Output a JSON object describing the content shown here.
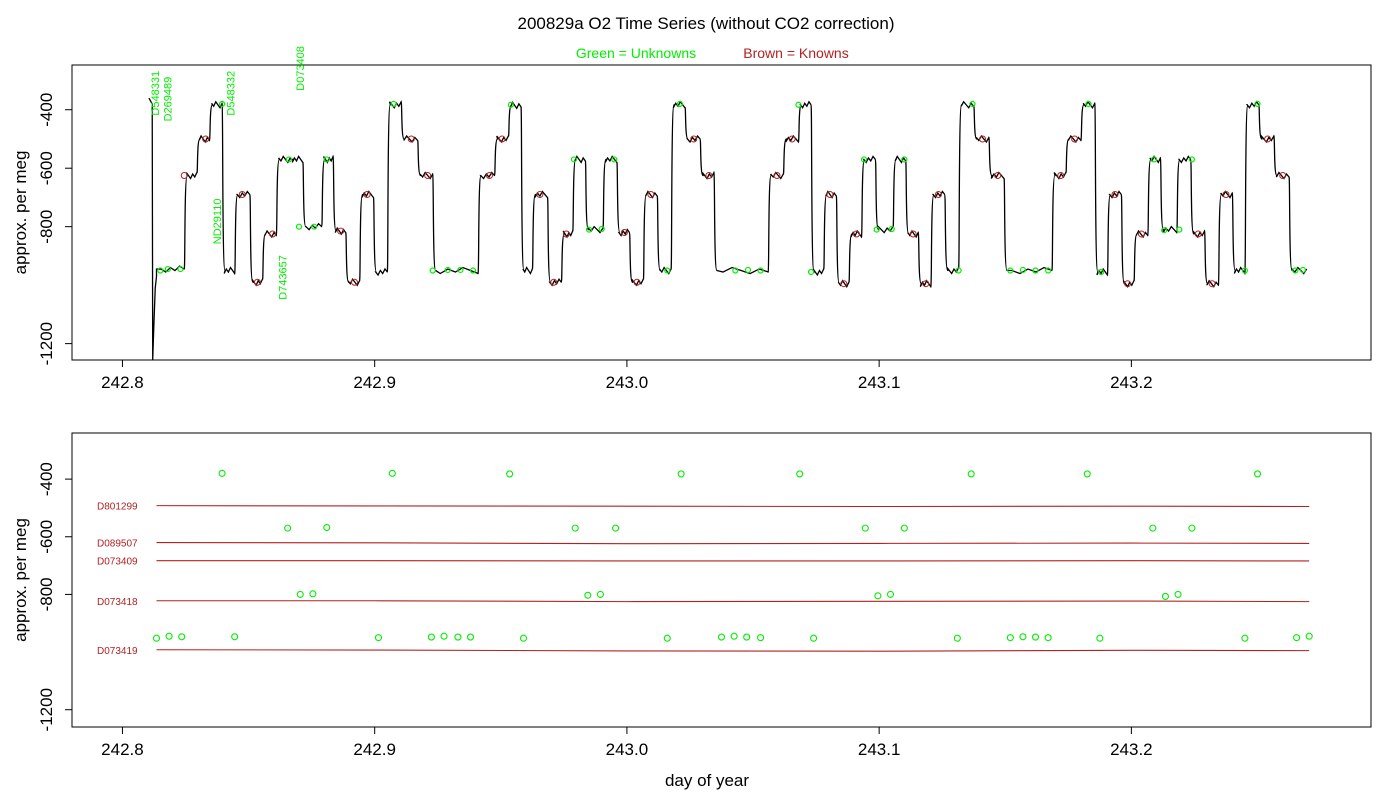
{
  "title": "200829a   O2 Time Series (without CO2 correction)",
  "legend": {
    "unknowns_label": "Green = Unknowns",
    "knowns_label": "Brown = Knowns",
    "unknowns_color": "#00ee00",
    "knowns_color": "#b22222",
    "placement": "top-center"
  },
  "xlabel": "day of year",
  "chart_data": [
    {
      "type": "line",
      "panel": "top",
      "ylabel": "approx. per meg",
      "xlim": [
        242.78,
        243.295
      ],
      "ylim": [
        -1256,
        -247
      ],
      "y_reversed": true,
      "x_ticks": [
        "242.8",
        "242.9",
        "243.0",
        "243.1",
        "243.2"
      ],
      "y_ticks": [
        "-400",
        "-600",
        "-800",
        "-1200"
      ],
      "step_series": {
        "name": "O2",
        "color": "#000000",
        "steps": [
          [
            242.8135,
            242.8245,
            -945
          ],
          [
            242.8245,
            242.8295,
            -625
          ],
          [
            242.8295,
            242.8345,
            -500
          ],
          [
            242.8345,
            242.8395,
            -383
          ],
          [
            242.8395,
            242.8445,
            -950
          ],
          [
            242.8445,
            242.8505,
            -690
          ],
          [
            242.8505,
            242.8555,
            -990
          ],
          [
            242.8555,
            242.861,
            -825
          ],
          [
            242.861,
            242.8665,
            -570
          ],
          [
            242.8665,
            242.8715,
            -570
          ],
          [
            242.8715,
            242.879,
            -800
          ],
          [
            242.879,
            242.8835,
            -570
          ],
          [
            242.8835,
            242.8885,
            -815
          ],
          [
            242.8885,
            242.894,
            -990
          ],
          [
            242.894,
            242.8995,
            -690
          ],
          [
            242.8995,
            242.905,
            -955
          ],
          [
            242.905,
            242.9105,
            -383
          ],
          [
            242.9105,
            242.917,
            -500
          ],
          [
            242.917,
            242.923,
            -625
          ],
          [
            242.923,
            242.941,
            -950
          ],
          [
            242.941,
            242.9475,
            -625
          ],
          [
            242.9475,
            242.953,
            -500
          ],
          [
            242.953,
            242.958,
            -385
          ],
          [
            242.958,
            242.9625,
            -950
          ],
          [
            242.9625,
            242.9685,
            -690
          ],
          [
            242.9685,
            242.974,
            -990
          ],
          [
            242.974,
            242.9785,
            -825
          ],
          [
            242.9785,
            242.9835,
            -570
          ],
          [
            242.9835,
            242.9905,
            -810
          ],
          [
            242.9905,
            242.996,
            -570
          ],
          [
            242.996,
            243.001,
            -820
          ],
          [
            243.001,
            243.0065,
            -990
          ],
          [
            243.0065,
            243.012,
            -690
          ],
          [
            243.012,
            243.0175,
            -950
          ],
          [
            243.0175,
            243.023,
            -383
          ],
          [
            243.023,
            243.029,
            -500
          ],
          [
            243.029,
            243.0345,
            -625
          ],
          [
            243.0345,
            243.056,
            -950
          ],
          [
            243.056,
            243.062,
            -625
          ],
          [
            243.062,
            243.068,
            -500
          ],
          [
            243.068,
            243.073,
            -383
          ],
          [
            243.073,
            243.078,
            -955
          ],
          [
            243.078,
            243.083,
            -690
          ],
          [
            243.083,
            243.088,
            -995
          ],
          [
            243.088,
            243.093,
            -825
          ],
          [
            243.093,
            243.0985,
            -570
          ],
          [
            243.0985,
            243.1055,
            -810
          ],
          [
            243.1055,
            243.1105,
            -570
          ],
          [
            243.1105,
            243.1155,
            -825
          ],
          [
            243.1155,
            243.1205,
            -995
          ],
          [
            243.1205,
            243.126,
            -690
          ],
          [
            243.126,
            243.1315,
            -950
          ],
          [
            243.1315,
            243.1375,
            -383
          ],
          [
            243.1375,
            243.1435,
            -500
          ],
          [
            243.1435,
            243.1495,
            -625
          ],
          [
            243.1495,
            243.1685,
            -950
          ],
          [
            243.1685,
            243.174,
            -625
          ],
          [
            243.174,
            243.18,
            -500
          ],
          [
            243.18,
            243.1855,
            -383
          ],
          [
            243.1855,
            243.1905,
            -955
          ],
          [
            243.1905,
            243.196,
            -690
          ],
          [
            243.196,
            243.201,
            -995
          ],
          [
            243.201,
            243.2065,
            -825
          ],
          [
            243.2065,
            243.2115,
            -570
          ],
          [
            243.2115,
            243.218,
            -810
          ],
          [
            243.218,
            243.2235,
            -570
          ],
          [
            243.2235,
            243.229,
            -825
          ],
          [
            243.229,
            243.2345,
            -995
          ],
          [
            243.2345,
            243.24,
            -690
          ],
          [
            243.24,
            243.245,
            -950
          ],
          [
            243.245,
            243.2505,
            -383
          ],
          [
            243.2505,
            243.2565,
            -500
          ],
          [
            243.2565,
            243.2625,
            -625
          ],
          [
            243.2625,
            243.2695,
            -950
          ]
        ]
      },
      "unknowns": [
        [
          242.815,
          -950
        ],
        [
          242.818,
          -945
        ],
        [
          242.823,
          -945
        ],
        [
          242.8395,
          -380
        ],
        [
          242.866,
          -570
        ],
        [
          242.87,
          -800
        ],
        [
          242.876,
          -800
        ],
        [
          242.881,
          -570
        ],
        [
          242.9075,
          -380
        ],
        [
          242.923,
          -950
        ],
        [
          242.929,
          -948
        ],
        [
          242.934,
          -948
        ],
        [
          242.939,
          -950
        ],
        [
          242.954,
          -383
        ],
        [
          242.979,
          -570
        ],
        [
          242.985,
          -810
        ],
        [
          242.99,
          -808
        ],
        [
          242.995,
          -570
        ],
        [
          243.016,
          -950
        ],
        [
          243.021,
          -380
        ],
        [
          243.043,
          -950
        ],
        [
          243.048,
          -948
        ],
        [
          243.053,
          -950
        ],
        [
          243.068,
          -383
        ],
        [
          243.073,
          -955
        ],
        [
          243.094,
          -570
        ],
        [
          243.099,
          -810
        ],
        [
          243.105,
          -808
        ],
        [
          243.11,
          -570
        ],
        [
          243.1315,
          -950
        ],
        [
          243.137,
          -380
        ],
        [
          243.152,
          -950
        ],
        [
          243.157,
          -948
        ],
        [
          243.162,
          -950
        ],
        [
          243.167,
          -950
        ],
        [
          243.183,
          -380
        ],
        [
          243.188,
          -955
        ],
        [
          243.209,
          -570
        ],
        [
          243.213,
          -812
        ],
        [
          243.219,
          -810
        ],
        [
          243.224,
          -570
        ],
        [
          243.245,
          -950
        ],
        [
          243.25,
          -380
        ],
        [
          243.265,
          -950
        ],
        [
          243.268,
          -948
        ]
      ],
      "knowns": [
        [
          242.8245,
          -625
        ],
        [
          242.833,
          -500
        ],
        [
          242.8475,
          -690
        ],
        [
          242.8595,
          -825
        ],
        [
          242.8535,
          -990
        ],
        [
          242.8865,
          -815
        ],
        [
          242.892,
          -990
        ],
        [
          242.897,
          -690
        ],
        [
          242.9145,
          -500
        ],
        [
          242.921,
          -625
        ],
        [
          242.9455,
          -625
        ],
        [
          242.9505,
          -500
        ],
        [
          242.9655,
          -690
        ],
        [
          242.971,
          -990
        ],
        [
          242.976,
          -825
        ],
        [
          242.999,
          -820
        ],
        [
          243.004,
          -990
        ],
        [
          243.0095,
          -690
        ],
        [
          243.0265,
          -500
        ],
        [
          243.0325,
          -625
        ],
        [
          243.0595,
          -625
        ],
        [
          243.0655,
          -500
        ],
        [
          243.0805,
          -690
        ],
        [
          243.086,
          -995
        ],
        [
          243.091,
          -825
        ],
        [
          243.1135,
          -825
        ],
        [
          243.1185,
          -995
        ],
        [
          243.1235,
          -690
        ],
        [
          243.141,
          -500
        ],
        [
          243.147,
          -625
        ],
        [
          243.172,
          -625
        ],
        [
          243.1775,
          -500
        ],
        [
          243.1935,
          -690
        ],
        [
          243.1985,
          -995
        ],
        [
          243.204,
          -825
        ],
        [
          243.2265,
          -825
        ],
        [
          243.232,
          -995
        ],
        [
          243.2375,
          -690
        ],
        [
          243.254,
          -500
        ],
        [
          243.26,
          -625
        ]
      ],
      "annotations": [
        {
          "text": "D548331",
          "x": 242.8145,
          "y": -420
        },
        {
          "text": "D269489",
          "x": 242.8195,
          "y": -440
        },
        {
          "text": "D548332",
          "x": 242.8445,
          "y": -420
        },
        {
          "text": "D073408",
          "x": 242.872,
          "y": -335
        },
        {
          "text": "ND29110",
          "x": 242.839,
          "y": -860
        },
        {
          "text": "D743657",
          "x": 242.865,
          "y": -1050
        }
      ]
    },
    {
      "type": "scatter",
      "panel": "bottom",
      "ylabel": "approx. per meg",
      "xlim": [
        242.78,
        243.295
      ],
      "ylim": [
        -1260,
        -240
      ],
      "y_reversed": true,
      "x_ticks": [
        "242.8",
        "242.9",
        "243.0",
        "243.1",
        "243.2"
      ],
      "y_ticks": [
        "-400",
        "-600",
        "-800",
        "-1200"
      ],
      "unknowns": [
        [
          242.8135,
          -952
        ],
        [
          242.8185,
          -945
        ],
        [
          242.8235,
          -947
        ],
        [
          242.8395,
          -380
        ],
        [
          242.8445,
          -947
        ],
        [
          242.8655,
          -570
        ],
        [
          242.8705,
          -800
        ],
        [
          242.8755,
          -798
        ],
        [
          242.881,
          -568
        ],
        [
          242.9015,
          -950
        ],
        [
          242.907,
          -380
        ],
        [
          242.9225,
          -948
        ],
        [
          242.9275,
          -945
        ],
        [
          242.933,
          -948
        ],
        [
          242.938,
          -948
        ],
        [
          242.9535,
          -382
        ],
        [
          242.959,
          -952
        ],
        [
          242.9795,
          -570
        ],
        [
          242.9845,
          -803
        ],
        [
          242.9895,
          -800
        ],
        [
          242.9955,
          -570
        ],
        [
          243.016,
          -952
        ],
        [
          243.0215,
          -382
        ],
        [
          243.0375,
          -948
        ],
        [
          243.0425,
          -945
        ],
        [
          243.0475,
          -948
        ],
        [
          243.053,
          -950
        ],
        [
          243.0685,
          -382
        ],
        [
          243.074,
          -952
        ],
        [
          243.0945,
          -570
        ],
        [
          243.0995,
          -805
        ],
        [
          243.1045,
          -800
        ],
        [
          243.11,
          -570
        ],
        [
          243.131,
          -952
        ],
        [
          243.1365,
          -382
        ],
        [
          243.152,
          -950
        ],
        [
          243.157,
          -947
        ],
        [
          243.162,
          -948
        ],
        [
          243.167,
          -950
        ],
        [
          243.1825,
          -382
        ],
        [
          243.1875,
          -952
        ],
        [
          243.2085,
          -570
        ],
        [
          243.2135,
          -807
        ],
        [
          243.2185,
          -800
        ],
        [
          243.224,
          -570
        ],
        [
          243.245,
          -952
        ],
        [
          243.25,
          -382
        ],
        [
          243.2655,
          -950
        ],
        [
          243.2705,
          -945
        ]
      ],
      "knowns": [
        {
          "name": "D801299",
          "x": [
            242.8135,
            242.9,
            243.0,
            243.1,
            243.2,
            243.2705
          ],
          "y": [
            -492,
            -493,
            -494,
            -495,
            -494,
            -495
          ]
        },
        {
          "name": "D089507",
          "x": [
            242.8135,
            242.9,
            243.0,
            243.1,
            243.2,
            243.2705
          ],
          "y": [
            -620,
            -621,
            -624,
            -623,
            -622,
            -623
          ]
        },
        {
          "name": "D073409",
          "x": [
            242.8135,
            242.9,
            243.0,
            243.1,
            243.2,
            243.2705
          ],
          "y": [
            -683,
            -683,
            -684,
            -684,
            -683,
            -684
          ]
        },
        {
          "name": "D073418",
          "x": [
            242.8135,
            242.9,
            243.0,
            243.1,
            243.2,
            243.2705
          ],
          "y": [
            -822,
            -822,
            -825,
            -824,
            -823,
            -825
          ]
        },
        {
          "name": "D073419",
          "x": [
            242.8135,
            242.9,
            243.0,
            243.1,
            243.2,
            243.2705
          ],
          "y": [
            -992,
            -993,
            -996,
            -997,
            -994,
            -995
          ]
        }
      ]
    }
  ]
}
